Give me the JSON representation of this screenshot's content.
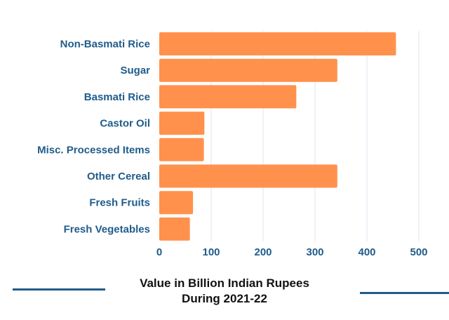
{
  "chart_data": {
    "type": "bar",
    "orientation": "horizontal",
    "categories": [
      "Non-Basmati Rice",
      "Sugar",
      "Basmati Rice",
      "Castor Oil",
      "Misc. Processed Items",
      "Other Cereal",
      "Fresh Fruits",
      "Fresh Vegetables"
    ],
    "values": [
      456,
      343,
      264,
      87,
      86,
      343,
      65,
      59
    ],
    "xticks": [
      "0",
      "100",
      "200",
      "300",
      "400",
      "500"
    ],
    "xlim": [
      0,
      500
    ],
    "grid": "vertical",
    "title": "",
    "caption_line1": "Value in Billion Indian Rupees",
    "caption_line2": "During 2021-22",
    "colors": {
      "bar": "#ff914d",
      "label": "#1f5c8b",
      "grid": "#dde6ef",
      "accent_line": "#1f5c8b"
    }
  }
}
